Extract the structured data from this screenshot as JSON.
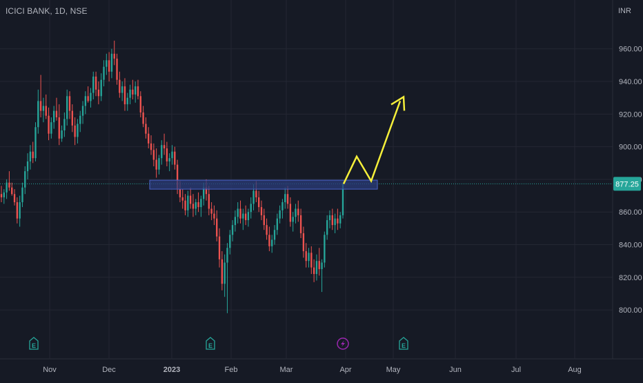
{
  "header": {
    "title": "ICICI BANK, 1D, NSE",
    "currency": "INR"
  },
  "price_label": "877.25",
  "colors": {
    "background": "#161a25",
    "grid": "#242733",
    "up": "#26a69a",
    "down": "#ef5350",
    "axis_text": "#b2b5be",
    "zone_fill": "#2b3c7a",
    "zone_stroke": "#4a63c9",
    "projection": "#f5ef3a",
    "price_tag": "#26a69a",
    "earnings": "#26a69a",
    "dividend": "#9c27b0"
  },
  "chart_data": {
    "type": "candlestick",
    "ylim": [
      792,
      973
    ],
    "ylabel": "INR",
    "y_ticks": [
      "800.00",
      "820.00",
      "840.00",
      "860.00",
      "880.00",
      "900.00",
      "920.00",
      "940.00",
      "960.00"
    ],
    "x_labels": [
      "Nov",
      "Dec",
      "2023",
      "Feb",
      "Mar",
      "Apr",
      "May",
      "Jun",
      "Jul",
      "Aug"
    ],
    "last_price": 877.25,
    "candles": [
      [
        871,
        876,
        866,
        869
      ],
      [
        869,
        874,
        865,
        872
      ],
      [
        872,
        880,
        868,
        878
      ],
      [
        878,
        885,
        873,
        875
      ],
      [
        875,
        878,
        870,
        871
      ],
      [
        871,
        874,
        864,
        866
      ],
      [
        866,
        869,
        853,
        856
      ],
      [
        856,
        870,
        851,
        866
      ],
      [
        866,
        878,
        863,
        875
      ],
      [
        875,
        888,
        871,
        885
      ],
      [
        885,
        896,
        880,
        891
      ],
      [
        891,
        901,
        886,
        897
      ],
      [
        897,
        903,
        890,
        893
      ],
      [
        893,
        915,
        891,
        912
      ],
      [
        912,
        935,
        908,
        928
      ],
      [
        928,
        944,
        918,
        922
      ],
      [
        922,
        930,
        915,
        925
      ],
      [
        925,
        932,
        917,
        919
      ],
      [
        919,
        924,
        904,
        908
      ],
      [
        908,
        918,
        905,
        915
      ],
      [
        915,
        925,
        911,
        922
      ],
      [
        922,
        930,
        916,
        918
      ],
      [
        918,
        926,
        901,
        905
      ],
      [
        905,
        913,
        903,
        910
      ],
      [
        910,
        921,
        906,
        917
      ],
      [
        917,
        935,
        913,
        931
      ],
      [
        931,
        934,
        917,
        922
      ],
      [
        922,
        926,
        909,
        913
      ],
      [
        913,
        918,
        901,
        906
      ],
      [
        906,
        917,
        902,
        914
      ],
      [
        914,
        922,
        909,
        919
      ],
      [
        919,
        928,
        914,
        925
      ],
      [
        925,
        934,
        920,
        931
      ],
      [
        931,
        937,
        927,
        928
      ],
      [
        928,
        936,
        924,
        933
      ],
      [
        933,
        946,
        929,
        943
      ],
      [
        943,
        946,
        931,
        935
      ],
      [
        935,
        940,
        926,
        931
      ],
      [
        931,
        945,
        928,
        941
      ],
      [
        941,
        953,
        937,
        949
      ],
      [
        949,
        957,
        944,
        953
      ],
      [
        953,
        958,
        940,
        946
      ],
      [
        946,
        960,
        942,
        957
      ],
      [
        957,
        965,
        950,
        954
      ],
      [
        954,
        957,
        938,
        941
      ],
      [
        941,
        946,
        930,
        933
      ],
      [
        933,
        940,
        928,
        937
      ],
      [
        937,
        942,
        922,
        926
      ],
      [
        926,
        933,
        922,
        930
      ],
      [
        930,
        938,
        926,
        935
      ],
      [
        935,
        941,
        929,
        932
      ],
      [
        932,
        940,
        927,
        937
      ],
      [
        937,
        941,
        929,
        931
      ],
      [
        931,
        934,
        918,
        921
      ],
      [
        921,
        925,
        912,
        914
      ],
      [
        914,
        918,
        905,
        908
      ],
      [
        908,
        912,
        899,
        902
      ],
      [
        902,
        907,
        895,
        898
      ],
      [
        898,
        902,
        888,
        892
      ],
      [
        892,
        899,
        881,
        886
      ],
      [
        886,
        895,
        883,
        893
      ],
      [
        893,
        904,
        889,
        901
      ],
      [
        901,
        908,
        895,
        899
      ],
      [
        899,
        903,
        888,
        891
      ],
      [
        891,
        896,
        885,
        893
      ],
      [
        893,
        901,
        889,
        897
      ],
      [
        897,
        900,
        886,
        889
      ],
      [
        889,
        892,
        871,
        874
      ],
      [
        874,
        879,
        866,
        869
      ],
      [
        869,
        874,
        862,
        867
      ],
      [
        867,
        871,
        858,
        861
      ],
      [
        861,
        873,
        857,
        870
      ],
      [
        870,
        875,
        862,
        865
      ],
      [
        865,
        871,
        857,
        862
      ],
      [
        862,
        868,
        858,
        866
      ],
      [
        866,
        872,
        860,
        863
      ],
      [
        863,
        870,
        857,
        868
      ],
      [
        868,
        878,
        864,
        875
      ],
      [
        875,
        880,
        867,
        871
      ],
      [
        871,
        876,
        858,
        862
      ],
      [
        862,
        866,
        855,
        859
      ],
      [
        859,
        864,
        852,
        856
      ],
      [
        856,
        861,
        842,
        845
      ],
      [
        845,
        850,
        826,
        831
      ],
      [
        831,
        836,
        812,
        816
      ],
      [
        816,
        834,
        808,
        829
      ],
      [
        829,
        841,
        798,
        838
      ],
      [
        838,
        849,
        834,
        846
      ],
      [
        846,
        855,
        842,
        852
      ],
      [
        852,
        861,
        848,
        857
      ],
      [
        857,
        866,
        853,
        862
      ],
      [
        862,
        867,
        853,
        856
      ],
      [
        856,
        862,
        849,
        859
      ],
      [
        859,
        864,
        852,
        855
      ],
      [
        855,
        862,
        851,
        860
      ],
      [
        860,
        869,
        856,
        865
      ],
      [
        865,
        877,
        861,
        873
      ],
      [
        873,
        879,
        866,
        869
      ],
      [
        869,
        873,
        860,
        863
      ],
      [
        863,
        867,
        855,
        858
      ],
      [
        858,
        862,
        849,
        852
      ],
      [
        852,
        856,
        843,
        846
      ],
      [
        846,
        851,
        836,
        839
      ],
      [
        839,
        846,
        835,
        843
      ],
      [
        843,
        852,
        840,
        849
      ],
      [
        849,
        859,
        846,
        856
      ],
      [
        856,
        864,
        853,
        861
      ],
      [
        861,
        868,
        856,
        866
      ],
      [
        866,
        875,
        862,
        871
      ],
      [
        871,
        876,
        862,
        865
      ],
      [
        865,
        869,
        851,
        854
      ],
      [
        854,
        860,
        848,
        857
      ],
      [
        857,
        865,
        853,
        862
      ],
      [
        862,
        867,
        854,
        858
      ],
      [
        858,
        862,
        844,
        847
      ],
      [
        847,
        851,
        832,
        836
      ],
      [
        836,
        841,
        826,
        830
      ],
      [
        830,
        838,
        826,
        835
      ],
      [
        835,
        839,
        822,
        826
      ],
      [
        826,
        831,
        817,
        822
      ],
      [
        822,
        834,
        818,
        830
      ],
      [
        830,
        838,
        821,
        825
      ],
      [
        825,
        831,
        811,
        829
      ],
      [
        829,
        848,
        826,
        846
      ],
      [
        846,
        858,
        843,
        855
      ],
      [
        855,
        861,
        850,
        858
      ],
      [
        858,
        862,
        849,
        852
      ],
      [
        852,
        859,
        847,
        856
      ],
      [
        856,
        862,
        849,
        853
      ],
      [
        853,
        860,
        850,
        858
      ],
      [
        858,
        878,
        856,
        877.25
      ]
    ],
    "resistance_zone": {
      "y_low": 874,
      "y_high": 879.5
    },
    "projection_path": [
      877.25,
      894,
      879,
      928
    ],
    "events": [
      {
        "type": "earnings",
        "label": "E"
      },
      {
        "type": "earnings",
        "label": "E"
      },
      {
        "type": "dividend",
        "label": "⚡"
      },
      {
        "type": "earnings",
        "label": "E"
      }
    ]
  }
}
